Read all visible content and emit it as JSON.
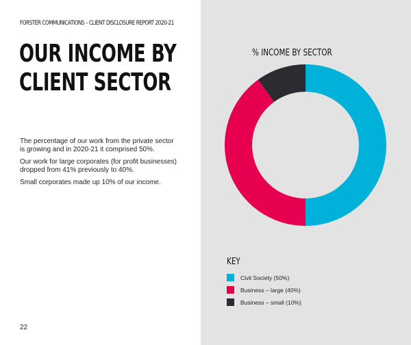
{
  "header": "FORSTER COMMUNICATIONS – CLIENT DISCLOSURE REPORT 2020-21",
  "title_lines": [
    "OUR INCOME BY",
    "CLIENT SECTOR"
  ],
  "paragraphs": [
    "The percentage of our work from the private sector is growing and in 2020-21 it comprised 50%.",
    "Our work for large corporates (for profit businesses) dropped from 41% previously to 40%.",
    "Small corporates made up 10% of our income."
  ],
  "page_number": "22",
  "colors": {
    "panel": "#e3e3e3",
    "civil": "#00b2d9",
    "large": "#e6004f",
    "small": "#2b2b30"
  },
  "chart_data": {
    "type": "pie",
    "style": "donut",
    "title": "% INCOME BY SECTOR",
    "legend_title": "KEY",
    "legend_placement": "bottom",
    "slices": [
      {
        "label": "Civil Society (50%)",
        "value": 50,
        "color": "#00b2d9"
      },
      {
        "label": "Business – large (40%)",
        "value": 40,
        "color": "#e6004f"
      },
      {
        "label": "Business – small (10%)",
        "value": 10,
        "color": "#2b2b30"
      }
    ]
  }
}
